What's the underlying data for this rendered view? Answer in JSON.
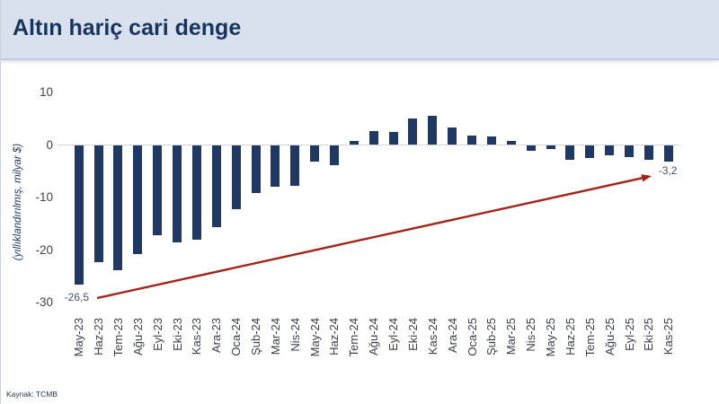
{
  "header": {
    "title": "Altın hariç cari denge"
  },
  "footer": {
    "source": "Kaynak: TCMB"
  },
  "chart_data": {
    "type": "bar",
    "title": "Altın hariç cari denge",
    "xlabel": "",
    "ylabel": "(yıllıklandırılmış, milyar $)",
    "ylim": [
      -30,
      10
    ],
    "yticks": [
      10,
      0,
      -10,
      -20,
      -30
    ],
    "grid": false,
    "legend": false,
    "bar_color": "#1f3864",
    "arrow_color": "#a32318",
    "zero_line_color": "#d6d6d6",
    "categories": [
      "May-23",
      "Haz-23",
      "Tem-23",
      "Ağu-23",
      "Eyl-23",
      "Eki-23",
      "Kas-23",
      "Ara-23",
      "Oca-24",
      "Şub-24",
      "Mar-24",
      "Nis-24",
      "May-24",
      "Haz-24",
      "Tem-24",
      "Ağu-24",
      "Eyl-24",
      "Eki-24",
      "Kas-24",
      "Ara-24",
      "Oca-25",
      "Şub-25",
      "Mar-25",
      "Nis-25",
      "May-25",
      "Haz-25",
      "Tem-25",
      "Ağu-25",
      "Eyl-25",
      "Eki-25",
      "Kas-25"
    ],
    "values": [
      -26.5,
      -22.3,
      -23.9,
      -20.8,
      -17.2,
      -18.5,
      -18.1,
      -15.7,
      -12.2,
      -9.2,
      -8.0,
      -7.7,
      -3.1,
      -3.8,
      0.8,
      2.7,
      2.4,
      5.1,
      5.6,
      3.4,
      1.8,
      1.6,
      0.8,
      -1.1,
      -0.7,
      -2.9,
      -2.4,
      -2.0,
      -2.3,
      -2.8,
      -3.2
    ],
    "annotations": [
      {
        "text": "-26,5",
        "target_index": 0,
        "placement": "below"
      },
      {
        "text": "-3,2",
        "target_index": 30,
        "placement": "below-right"
      }
    ],
    "trend_arrow": {
      "from_index": 0,
      "to_index": 30
    }
  }
}
